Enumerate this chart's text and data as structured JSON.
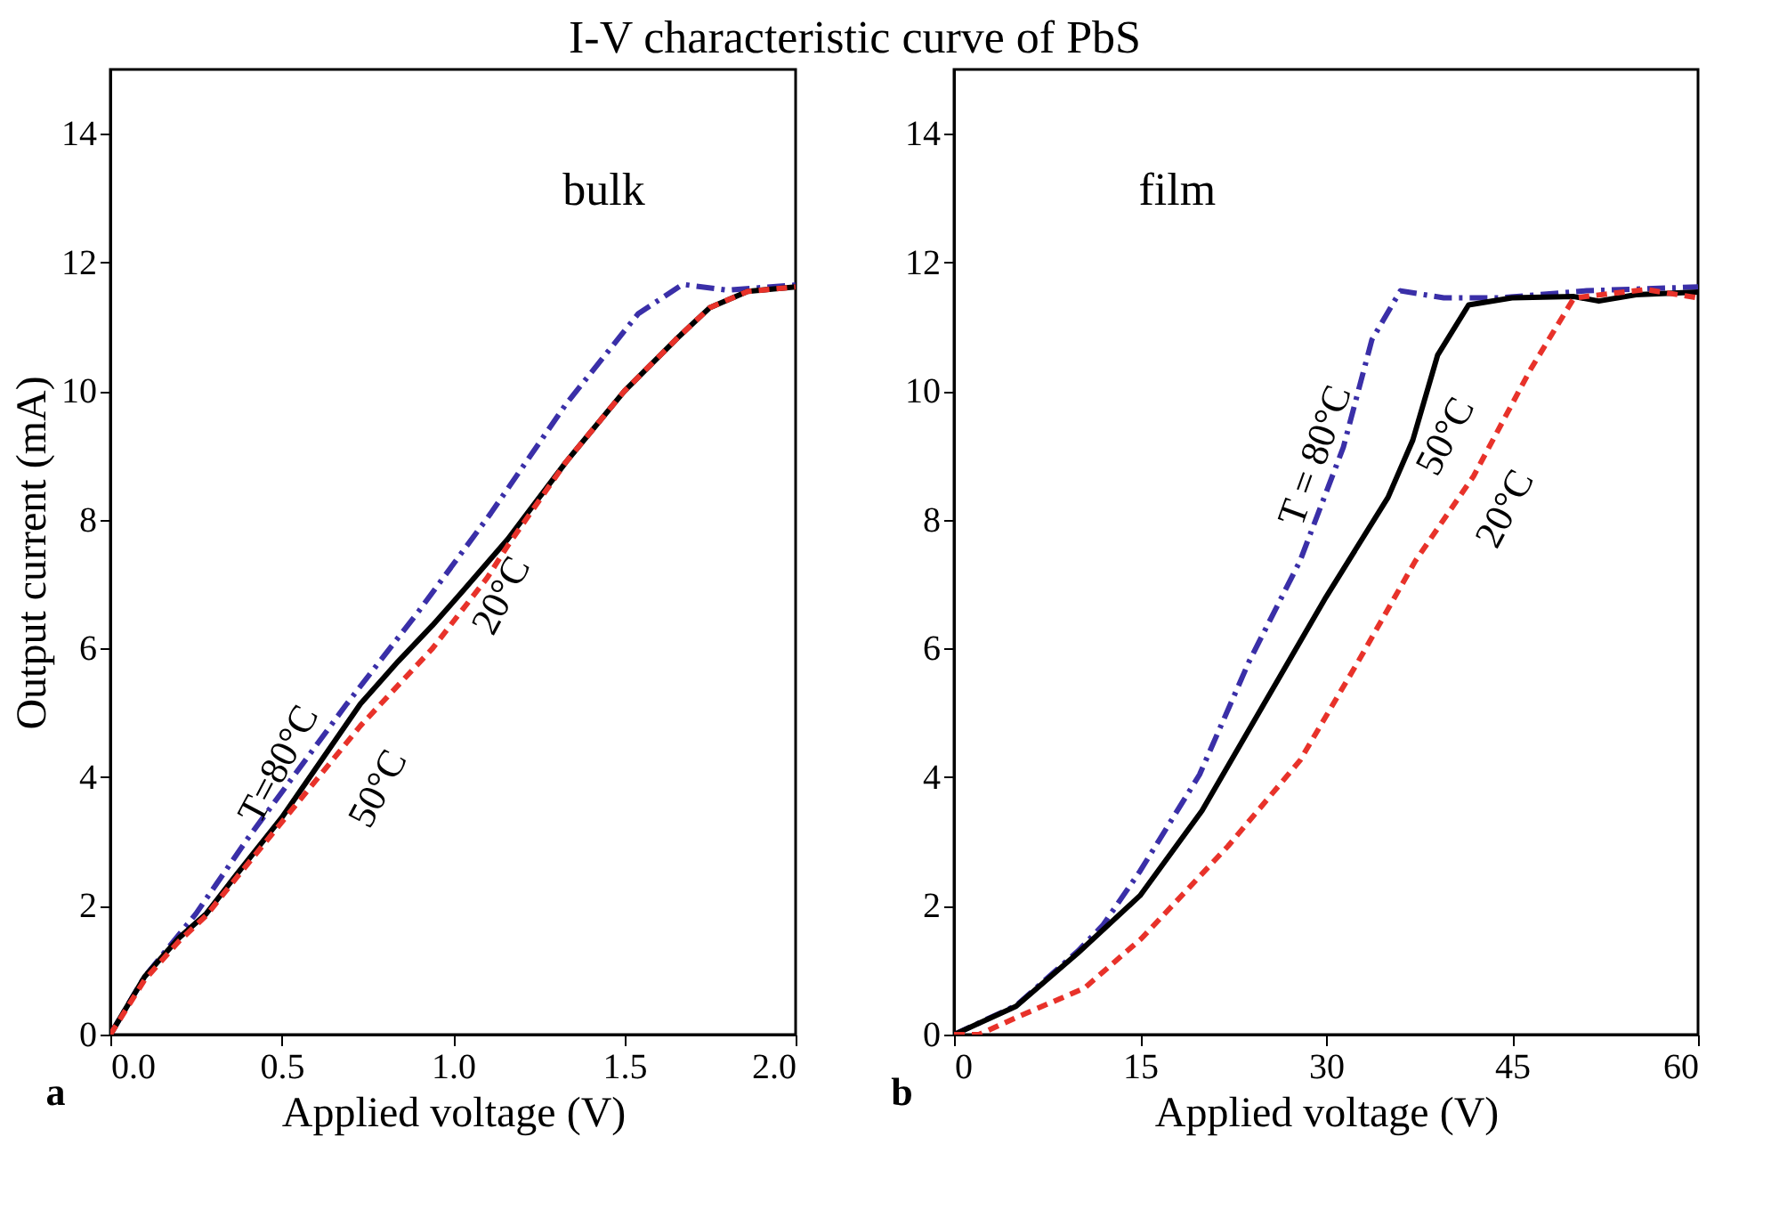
{
  "chart_data": [
    {
      "type": "line",
      "title": "I-V characteristic curve of PbS",
      "xlabel": "Applied voltage  (V)",
      "ylabel": "Output current  (mA)",
      "xlim": [
        0,
        2
      ],
      "xticks": [
        {
          "value": 0,
          "label": "0.0"
        },
        {
          "value": 0.5,
          "label": "0.5"
        },
        {
          "value": 1,
          "label": "1.0"
        },
        {
          "value": 1.5,
          "label": "1.5"
        },
        {
          "value": 2,
          "label": "2.0"
        }
      ],
      "ylim": [
        0,
        15
      ],
      "yticks": [
        0,
        2,
        4,
        6,
        8,
        10,
        12,
        14
      ],
      "grid": false,
      "series": [
        {
          "color": "#3a2fa8",
          "line_style": "dashdot",
          "x": [
            0,
            0.1,
            0.25,
            0.4,
            0.69,
            0.9,
            1.11,
            1.33,
            1.54,
            1.67,
            1.8,
            2.0
          ],
          "values": [
            0,
            0.9,
            1.88,
            3.04,
            5.14,
            6.58,
            8.1,
            9.8,
            11.2,
            11.66,
            11.57,
            11.65
          ]
        },
        {
          "color": "#000000",
          "line_style": "solid",
          "x": [
            0,
            0.1,
            0.2,
            0.28,
            0.37,
            0.5,
            0.73,
            0.84,
            0.94,
            1.03,
            1.16,
            1.33,
            1.5,
            1.65,
            1.75,
            1.86,
            2.0
          ],
          "values": [
            0,
            0.9,
            1.5,
            1.88,
            2.5,
            3.37,
            5.14,
            5.8,
            6.36,
            6.9,
            7.7,
            8.9,
            10.0,
            10.8,
            11.3,
            11.55,
            11.62
          ]
        },
        {
          "color": "#e8322a",
          "line_style": "dashed",
          "x": [
            0,
            0.1,
            0.2,
            0.28,
            0.37,
            0.5,
            0.73,
            0.94,
            1.1,
            1.16,
            1.33,
            1.5,
            1.65,
            1.75,
            1.86,
            2.0
          ],
          "values": [
            0,
            0.85,
            1.45,
            1.85,
            2.45,
            3.3,
            4.8,
            6.0,
            7.1,
            7.6,
            8.9,
            10.0,
            10.8,
            11.3,
            11.55,
            11.62
          ]
        }
      ],
      "annotations": [
        "bulk",
        "a",
        "T=80°C",
        "50°C",
        "20°C"
      ]
    },
    {
      "type": "line",
      "xlabel": "Applied voltage  (V)",
      "xlim": [
        0,
        60
      ],
      "xticks": [
        0,
        15,
        30,
        45,
        60
      ],
      "ylim": [
        0,
        15
      ],
      "yticks": [
        0,
        2,
        4,
        6,
        8,
        10,
        12,
        14
      ],
      "grid": false,
      "series": [
        {
          "color": "#3a2fa8",
          "line_style": "dashdot",
          "x": [
            0,
            5,
            10,
            12,
            15,
            19.8,
            23.8,
            27.9,
            31.4,
            33.7,
            36,
            39.5,
            44,
            51,
            60
          ],
          "values": [
            0,
            0.45,
            1.3,
            1.7,
            2.54,
            4.04,
            5.8,
            7.36,
            9.13,
            10.8,
            11.56,
            11.45,
            11.45,
            11.56,
            11.62
          ]
        },
        {
          "color": "#000000",
          "line_style": "solid",
          "x": [
            0,
            5,
            10,
            15,
            20,
            25,
            30,
            35,
            37,
            39,
            41.5,
            45,
            50,
            52,
            55,
            60
          ],
          "values": [
            0,
            0.44,
            1.27,
            2.16,
            3.48,
            5.14,
            6.8,
            8.35,
            9.24,
            10.56,
            11.34,
            11.45,
            11.47,
            11.4,
            11.5,
            11.54
          ]
        },
        {
          "color": "#e8322a",
          "line_style": "dashed",
          "x": [
            0,
            2,
            5.2,
            10.5,
            15.1,
            22.1,
            27.9,
            32.6,
            37.2,
            41.9,
            46.5,
            50,
            55.8,
            60
          ],
          "values": [
            0,
            0,
            0.28,
            0.72,
            1.49,
            2.93,
            4.26,
            5.8,
            7.36,
            8.68,
            10.34,
            11.45,
            11.58,
            11.45
          ]
        }
      ],
      "annotations": [
        "film",
        "b",
        "T = 80°C",
        "50°C",
        "20°C"
      ]
    }
  ]
}
